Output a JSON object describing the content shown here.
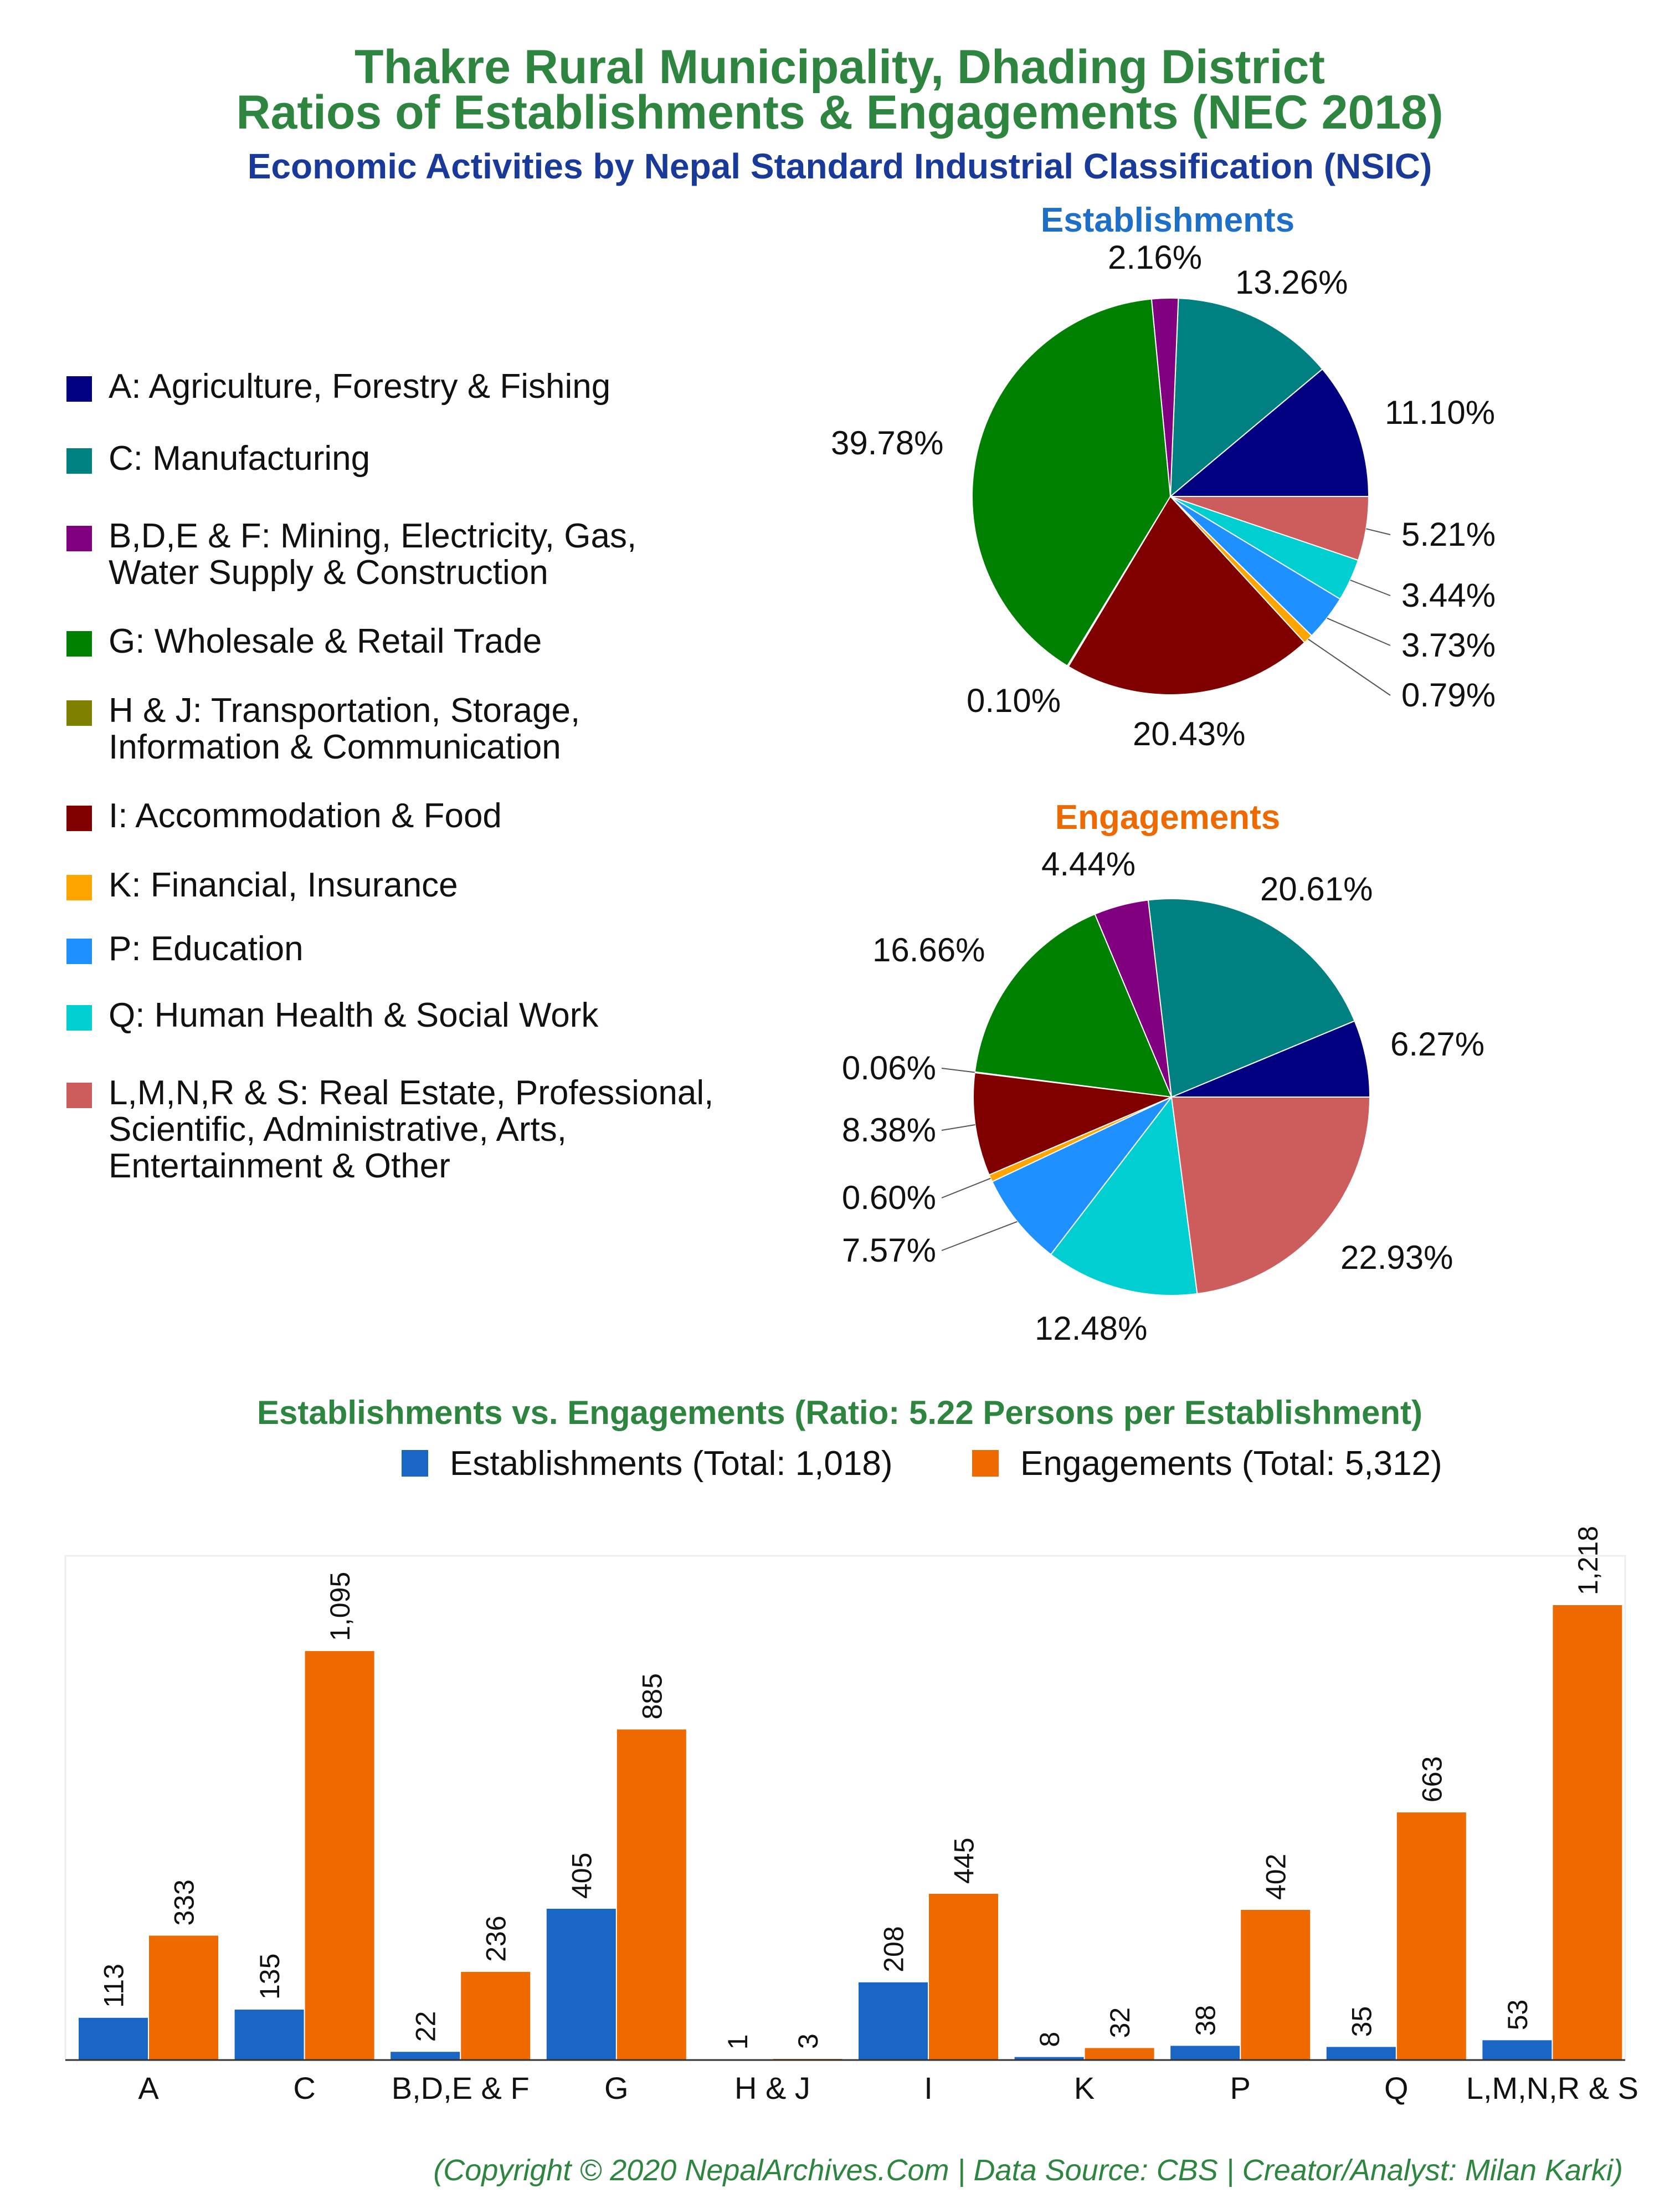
{
  "header": {
    "title_line1": "Thakre Rural Municipality, Dhading District",
    "title_line2": "Ratios of Establishments & Engagements (NEC 2018)",
    "subtitle": "Economic Activities by Nepal Standard Industrial Classification (NSIC)",
    "title_color": "#2e8540",
    "subtitle_color": "#1a3a99"
  },
  "legend": {
    "items": [
      {
        "label": "A: Agriculture, Forestry & Fishing",
        "color": "#000080"
      },
      {
        "label": "C: Manufacturing",
        "color": "#008080"
      },
      {
        "label": "B,D,E & F: Mining, Electricity, Gas,\nWater Supply & Construction",
        "color": "#800080"
      },
      {
        "label": "G: Wholesale & Retail Trade",
        "color": "#008000"
      },
      {
        "label": "H & J: Transportation, Storage,\nInformation & Communication",
        "color": "#808000"
      },
      {
        "label": "I: Accommodation & Food",
        "color": "#800000"
      },
      {
        "label": "K: Financial, Insurance",
        "color": "#ffa500"
      },
      {
        "label": "P: Education",
        "color": "#1e90ff"
      },
      {
        "label": "Q: Human Health & Social Work",
        "color": "#00ced1"
      },
      {
        "label": "L,M,N,R & S: Real Estate, Professional,\nScientific, Administrative, Arts,\nEntertainment & Other",
        "color": "#cd5c5c"
      }
    ]
  },
  "chart_data": [
    {
      "type": "pie",
      "title": "Establishments",
      "title_color": "#1e6fc8",
      "categories": [
        "A",
        "C",
        "B,D,E & F",
        "G",
        "H & J",
        "I",
        "K",
        "P",
        "Q",
        "L,M,N,R & S"
      ],
      "values": [
        11.1,
        13.26,
        2.16,
        39.78,
        0.1,
        20.43,
        0.79,
        3.73,
        3.44,
        5.21
      ],
      "labels": [
        "11.10%",
        "13.26%",
        "2.16%",
        "39.78%",
        "0.10%",
        "20.43%",
        "0.79%",
        "3.73%",
        "3.44%",
        "5.21%"
      ]
    },
    {
      "type": "pie",
      "title": "Engagements",
      "title_color": "#ee6a00",
      "categories": [
        "A",
        "C",
        "B,D,E & F",
        "G",
        "H & J",
        "I",
        "K",
        "P",
        "Q",
        "L,M,N,R & S"
      ],
      "values": [
        6.27,
        20.61,
        4.44,
        16.66,
        0.06,
        8.38,
        0.6,
        7.57,
        12.48,
        22.93
      ],
      "labels": [
        "6.27%",
        "20.61%",
        "4.44%",
        "16.66%",
        "0.06%",
        "8.38%",
        "0.60%",
        "7.57%",
        "12.48%",
        "22.93%"
      ]
    },
    {
      "type": "bar",
      "title": "Establishments vs. Engagements (Ratio: 5.22 Persons per Establishment)",
      "title_color": "#2e8540",
      "categories": [
        "A",
        "C",
        "B,D,E & F",
        "G",
        "H & J",
        "I",
        "K",
        "P",
        "Q",
        "L,M,N,R & S"
      ],
      "series": [
        {
          "name": "Establishments (Total: 1,018)",
          "color": "#1a66c4",
          "values": [
            113,
            135,
            22,
            405,
            1,
            208,
            8,
            38,
            35,
            53
          ],
          "labels": [
            "113",
            "135",
            "22",
            "405",
            "1",
            "208",
            "8",
            "38",
            "35",
            "53"
          ]
        },
        {
          "name": "Engagements (Total: 5,312)",
          "color": "#ee6a00",
          "values": [
            333,
            1095,
            236,
            885,
            3,
            445,
            32,
            402,
            663,
            1218
          ],
          "labels": [
            "333",
            "1,095",
            "236",
            "885",
            "3",
            "445",
            "32",
            "402",
            "663",
            "1,218"
          ]
        }
      ],
      "ylim": [
        0,
        1350
      ],
      "grid": false,
      "legend_position": "top"
    }
  ],
  "footer": {
    "text": "(Copyright © 2020 NepalArchives.Com | Data Source: CBS | Creator/Analyst: Milan Karki)",
    "color": "#2e8540"
  }
}
